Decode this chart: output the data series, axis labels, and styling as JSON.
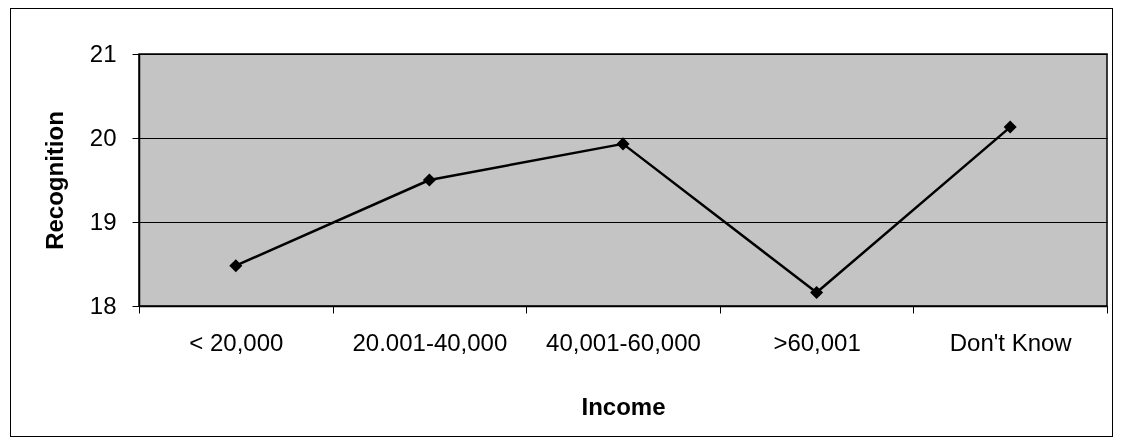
{
  "chart_data": {
    "type": "line",
    "xlabel": "Income",
    "ylabel": "Recognition",
    "categories": [
      "< 20,000",
      "20.001-40,000",
      "40,001-60,000",
      ">60,001",
      "Don't Know"
    ],
    "series": [
      {
        "color": "#000000",
        "values": [
          18.48,
          19.5,
          19.93,
          18.16,
          20.13
        ]
      }
    ],
    "ylim": [
      18,
      21
    ],
    "yticks": [
      18,
      19,
      20,
      21
    ],
    "grid": "y",
    "marker": "diamond",
    "line_style": "solid"
  }
}
